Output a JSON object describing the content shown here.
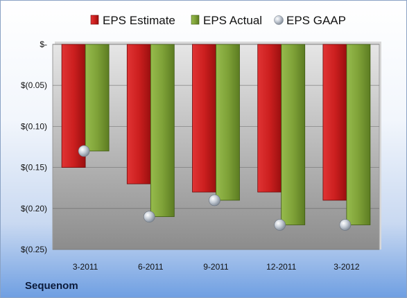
{
  "company": "Sequenom",
  "chart_data": {
    "type": "bar",
    "categories": [
      "3-2011",
      "6-2011",
      "9-2011",
      "12-2011",
      "3-2012"
    ],
    "series": [
      {
        "name": "EPS Estimate",
        "values": [
          -0.15,
          -0.17,
          -0.18,
          -0.18,
          -0.19
        ],
        "color": "#cc1f1f"
      },
      {
        "name": "EPS Actual",
        "values": [
          -0.13,
          -0.21,
          -0.19,
          -0.22,
          -0.22
        ],
        "color": "#7fa238"
      },
      {
        "name": "EPS GAAP",
        "values": [
          -0.13,
          -0.21,
          -0.19,
          -0.22,
          -0.22
        ],
        "color": "#b9c3cf",
        "marker": "sphere"
      }
    ],
    "ylim": [
      -0.25,
      0
    ],
    "yticks": [
      0,
      -0.05,
      -0.1,
      -0.15,
      -0.2,
      -0.25
    ],
    "ytick_labels": [
      "$-",
      "$(0.05)",
      "$(0.10)",
      "$(0.15)",
      "$(0.20)",
      "$(0.25)"
    ],
    "grid": true,
    "legend_position": "top"
  }
}
